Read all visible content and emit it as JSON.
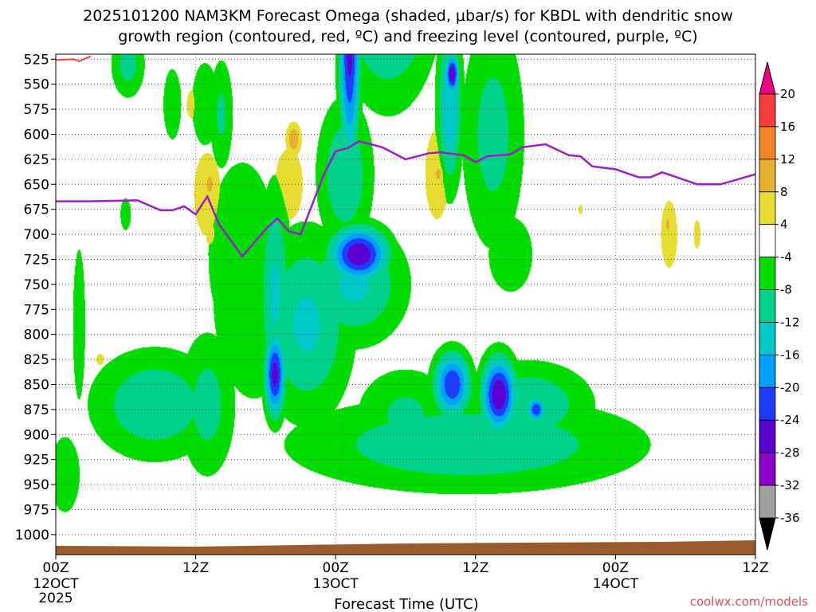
{
  "chart_data": {
    "type": "heatmap",
    "title_line1": "2025101200 NAM3KM Forecast Omega (shaded, μbar/s) for KBDL with dendritic snow",
    "title_line2": "growth region (contoured, red, ºC) and freezing level (contoured, purple, ºC)",
    "xlabel": "Forecast Time (UTC)",
    "credit": "coolwx.com/models",
    "x_ticks": [
      {
        "hour": 0,
        "l1": "00Z",
        "l2": "12OCT",
        "l3": "2025"
      },
      {
        "hour": 12,
        "l1": "12Z",
        "l2": "",
        "l3": ""
      },
      {
        "hour": 24,
        "l1": "00Z",
        "l2": "13OCT",
        "l3": ""
      },
      {
        "hour": 36,
        "l1": "12Z",
        "l2": "",
        "l3": ""
      },
      {
        "hour": 48,
        "l1": "00Z",
        "l2": "14OCT",
        "l3": ""
      },
      {
        "hour": 60,
        "l1": "12Z",
        "l2": "",
        "l3": ""
      }
    ],
    "xlim": [
      0,
      60
    ],
    "y_ticks": [
      525,
      550,
      575,
      600,
      625,
      650,
      675,
      700,
      725,
      750,
      775,
      800,
      825,
      850,
      875,
      900,
      925,
      950,
      975,
      1000
    ],
    "ylim": [
      520,
      1020
    ],
    "grid": true,
    "colorbar": {
      "levels": [
        -36,
        -32,
        -28,
        -24,
        -20,
        -16,
        -12,
        -8,
        -4,
        4,
        8,
        12,
        16,
        20
      ],
      "labels": [
        "20",
        "16",
        "12",
        "8",
        "4",
        "-4",
        "-8",
        "-12",
        "-16",
        "-20",
        "-24",
        "-28",
        "-32",
        "-36"
      ],
      "colors": [
        "#000000",
        "#a0a0a0",
        "#8c00c8",
        "#5a00d0",
        "#1e3cff",
        "#00a0ff",
        "#00c8c8",
        "#00d28c",
        "#00dc00",
        "#ffffff",
        "#e6dc32",
        "#e6af2d",
        "#f08228",
        "#fa3c3c",
        "#f00082"
      ]
    },
    "freezing_level": {
      "hours": [
        0,
        3,
        7,
        9,
        10,
        11,
        12,
        13,
        14,
        16,
        18,
        19,
        20,
        21,
        22,
        23,
        24,
        25,
        26,
        27,
        28,
        30,
        32,
        33,
        35,
        36,
        37,
        39,
        40,
        42,
        44,
        45,
        46,
        48,
        50,
        51,
        52,
        53,
        55,
        57,
        60
      ],
      "pressure": [
        667,
        667,
        666,
        676,
        676,
        672,
        680,
        662,
        690,
        722,
        695,
        684,
        697,
        700,
        670,
        640,
        617,
        614,
        607,
        610,
        613,
        625,
        619,
        618,
        621,
        628,
        622,
        620,
        613,
        610,
        621,
        622,
        632,
        635,
        643,
        643,
        638,
        642,
        650,
        650,
        640
      ]
    },
    "dendritic_contour": {
      "hours": [
        0,
        1.5,
        2,
        3
      ],
      "pressure": [
        526,
        525,
        527,
        522
      ]
    },
    "omega_blobs": [
      {
        "t": 28.5,
        "p": 430,
        "w": 4,
        "h": 240,
        "v": -20
      },
      {
        "t": 25.2,
        "p": 510,
        "w": 0.9,
        "h": 230,
        "v": -26
      },
      {
        "t": 24.8,
        "p": 640,
        "w": 2.4,
        "h": 150,
        "v": -12
      },
      {
        "t": 25.6,
        "p": 750,
        "w": 4.5,
        "h": 120,
        "v": -13
      },
      {
        "t": 26,
        "p": 720,
        "w": 2.5,
        "h": 55,
        "v": -28
      },
      {
        "t": 21.5,
        "p": 790,
        "w": 4,
        "h": 190,
        "v": -13
      },
      {
        "t": 16,
        "p": 720,
        "w": 3.5,
        "h": 220,
        "v": -8
      },
      {
        "t": 17,
        "p": 760,
        "w": 4.2,
        "h": 250,
        "v": -8
      },
      {
        "t": 18.8,
        "p": 840,
        "w": 0.9,
        "h": 85,
        "v": -26
      },
      {
        "t": 18.8,
        "p": 760,
        "w": 1.4,
        "h": 220,
        "v": -13
      },
      {
        "t": 8.5,
        "p": 870,
        "w": 5.5,
        "h": 110,
        "v": -12
      },
      {
        "t": 13,
        "p": 870,
        "w": 2.5,
        "h": 150,
        "v": -10
      },
      {
        "t": 35.3,
        "p": 910,
        "w": 15,
        "h": 95,
        "v": -12
      },
      {
        "t": 34,
        "p": 850,
        "w": 1.6,
        "h": 65,
        "v": -24
      },
      {
        "t": 38,
        "p": 860,
        "w": 1.5,
        "h": 75,
        "v": -28
      },
      {
        "t": 41.2,
        "p": 875,
        "w": 0.8,
        "h": 25,
        "v": -24
      },
      {
        "t": 40.5,
        "p": 870,
        "w": 5.5,
        "h": 85,
        "v": -12
      },
      {
        "t": 30,
        "p": 880,
        "w": 4.5,
        "h": 100,
        "v": -9
      },
      {
        "t": 37.5,
        "p": 600,
        "w": 2.8,
        "h": 240,
        "v": -10
      },
      {
        "t": 33.8,
        "p": 570,
        "w": 1.1,
        "h": 170,
        "v": -16
      },
      {
        "t": 34,
        "p": 540,
        "w": 0.6,
        "h": 40,
        "v": -28
      },
      {
        "t": 2,
        "p": 790,
        "w": 0.7,
        "h": 200,
        "v": -7
      },
      {
        "t": 6.2,
        "p": 530,
        "w": 1.5,
        "h": 70,
        "v": -10
      },
      {
        "t": 12.8,
        "p": 570,
        "w": 1.5,
        "h": 110,
        "v": -7
      },
      {
        "t": 14.2,
        "p": 580,
        "w": 1.1,
        "h": 120,
        "v": -9
      },
      {
        "t": 10,
        "p": 570,
        "w": 1.2,
        "h": 110,
        "v": -6
      },
      {
        "t": 47,
        "p": 900,
        "w": 0.9,
        "h": 40,
        "v": -7
      },
      {
        "t": 39,
        "p": 720,
        "w": 2.5,
        "h": 100,
        "v": -7
      },
      {
        "t": 0.8,
        "p": 940,
        "w": 1.5,
        "h": 90,
        "v": -8
      },
      {
        "t": 6,
        "p": 680,
        "w": 0.7,
        "h": 50,
        "v": -6
      },
      {
        "t": 20,
        "p": 650,
        "w": 2.5,
        "h": 150,
        "v": 5
      },
      {
        "t": 20.4,
        "p": 605,
        "w": 0.7,
        "h": 35,
        "v": 11
      },
      {
        "t": 13,
        "p": 660,
        "w": 1.8,
        "h": 130,
        "v": 6
      },
      {
        "t": 13.2,
        "p": 650,
        "w": 0.7,
        "h": 45,
        "v": 9
      },
      {
        "t": 13.4,
        "p": 700,
        "w": 1.1,
        "h": 55,
        "v": 5
      },
      {
        "t": 11.7,
        "p": 570,
        "w": 1,
        "h": 60,
        "v": 5
      },
      {
        "t": 32.7,
        "p": 640,
        "w": 1.6,
        "h": 140,
        "v": 6
      },
      {
        "t": 32.8,
        "p": 640,
        "w": 0.6,
        "h": 30,
        "v": 9
      },
      {
        "t": 52.6,
        "p": 700,
        "w": 1.1,
        "h": 105,
        "v": 6
      },
      {
        "t": 52.5,
        "p": 690,
        "w": 0.4,
        "h": 30,
        "v": 9
      },
      {
        "t": 55,
        "p": 700,
        "w": 0.6,
        "h": 60,
        "v": 5
      },
      {
        "t": 3.8,
        "p": 825,
        "w": 0.5,
        "h": 18,
        "v": 6
      },
      {
        "t": 5.8,
        "p": 880,
        "w": 0.4,
        "h": 20,
        "v": 5
      },
      {
        "t": 45,
        "p": 675,
        "w": 0.4,
        "h": 20,
        "v": 5
      }
    ],
    "omega_clip_levels": [
      -36,
      20
    ]
  }
}
